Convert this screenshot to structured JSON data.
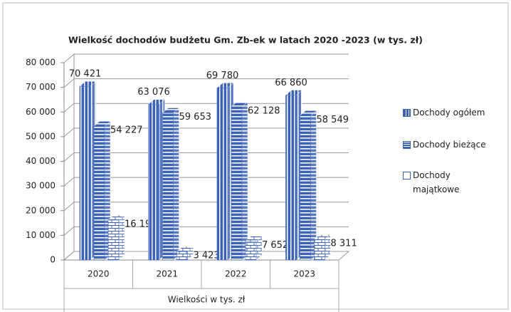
{
  "chart_data": {
    "type": "bar3d",
    "title": "Wielkość dochodów budżetu Gm. Zb-ek w latach 2020 -2023 (w tys. zł)",
    "x_label": "Wielkości w tys. zł",
    "categories": [
      "2020",
      "2021",
      "2022",
      "2023"
    ],
    "series": [
      {
        "name": "Dochody ogółem",
        "color": "#3a62b8",
        "pattern": "vertical",
        "values": [
          70421,
          63076,
          69780,
          66860
        ],
        "value_labels": [
          "70 421",
          "63 076",
          "69 780",
          "66 860"
        ]
      },
      {
        "name": "Dochody bieżące",
        "color": "#3a62b8",
        "pattern": "horizontal",
        "values": [
          54227,
          59653,
          62128,
          58549
        ],
        "value_labels": [
          "54 227",
          "59 653",
          "62 128",
          "58 549"
        ]
      },
      {
        "name": "Dochody majątkowe",
        "color": "#3a62b8",
        "pattern": "brick",
        "values": [
          16194,
          3423,
          7652,
          8311
        ],
        "value_labels": [
          "16 194",
          "3 423",
          "7 652",
          "8 311"
        ]
      }
    ],
    "ylim": [
      0,
      80000
    ],
    "yticks": [
      0,
      {
        "value": 10000,
        "label": "10 000"
      },
      {
        "value": 20000,
        "label": "20 000"
      },
      {
        "value": 30000,
        "label": "30 000"
      },
      {
        "value": 40000,
        "label": "40 000"
      },
      {
        "value": 50000,
        "label": "50 000"
      },
      {
        "value": 60000,
        "label": "60 000"
      },
      {
        "value": 70000,
        "label": "70 000"
      },
      {
        "value": 80000,
        "label": "80 000"
      }
    ],
    "grid": true,
    "legend": "right"
  }
}
